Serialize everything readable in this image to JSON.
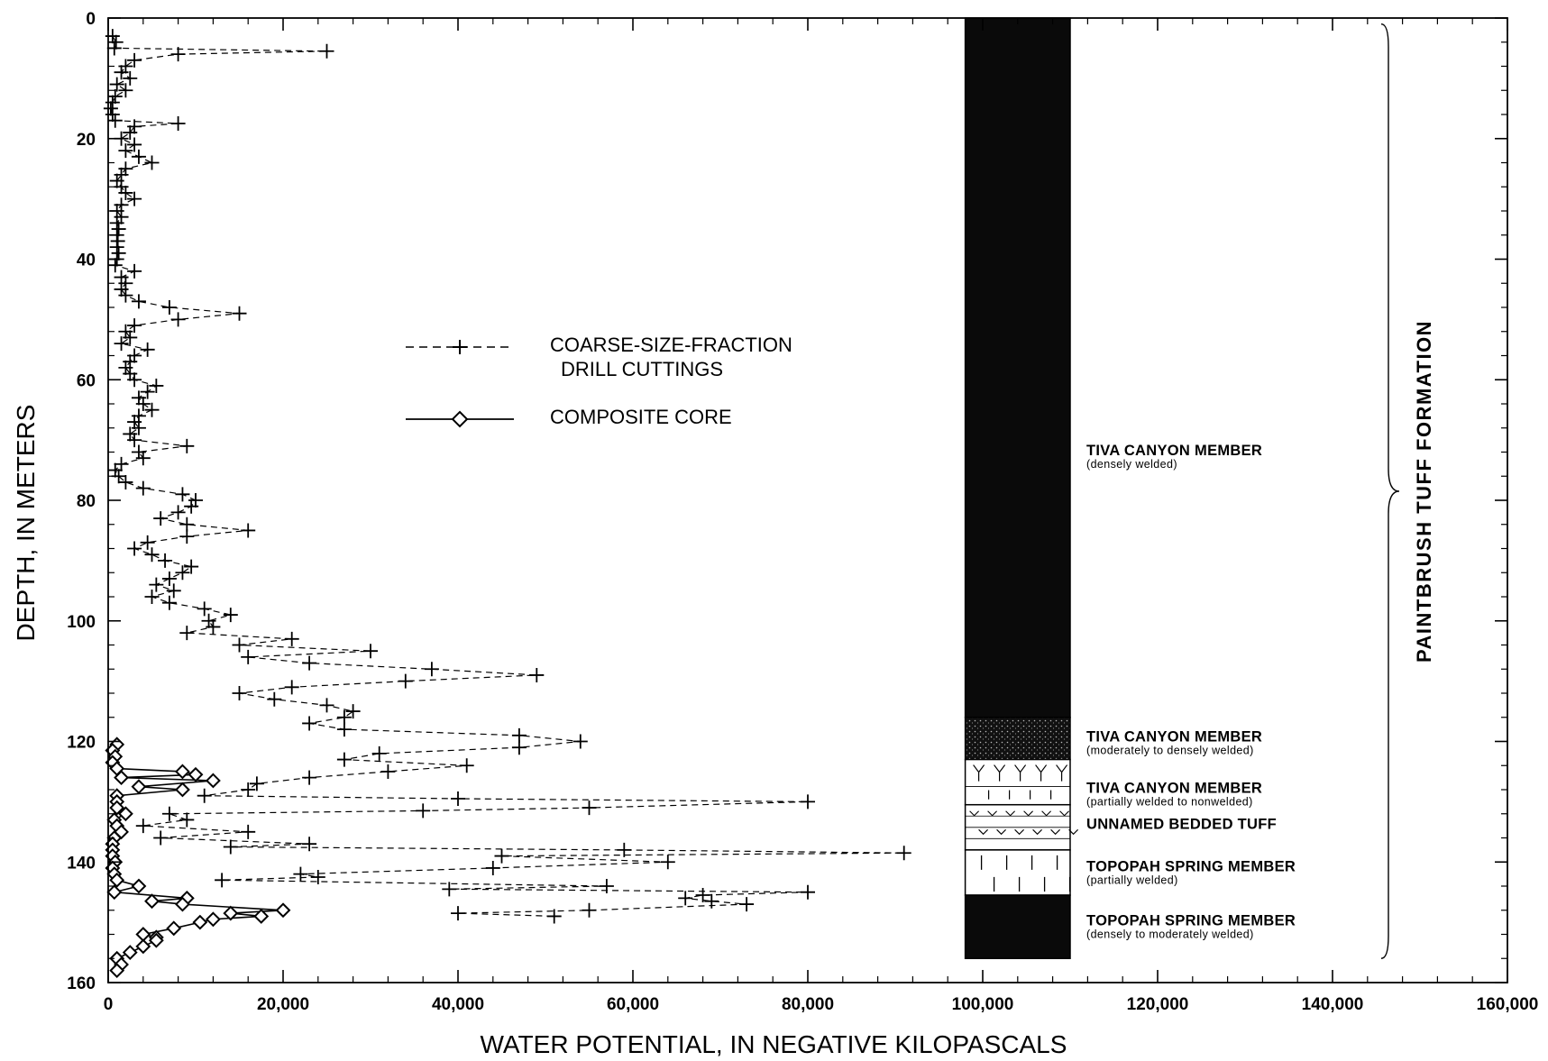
{
  "chart_data": {
    "type": "scatter",
    "xlabel": "WATER POTENTIAL, IN NEGATIVE KILOPASCALS",
    "ylabel": "DEPTH, IN METERS",
    "xlim": [
      0,
      160000
    ],
    "ylim": [
      0,
      160
    ],
    "y_inverted": true,
    "x_ticks": [
      0,
      20000,
      40000,
      60000,
      80000,
      100000,
      120000,
      140000,
      160000
    ],
    "x_tick_labels": [
      "0",
      "20,000",
      "40,000",
      "60,000",
      "80,000",
      "100,000",
      "120,000",
      "140,000",
      "160,000"
    ],
    "y_ticks": [
      0,
      20,
      40,
      60,
      80,
      100,
      120,
      140,
      160
    ],
    "y_tick_labels": [
      "0",
      "20",
      "40",
      "60",
      "80",
      "100",
      "120",
      "140",
      "160"
    ],
    "legend": {
      "placement": "upper-center",
      "entries": [
        {
          "label_lines": [
            "COARSE-SIZE-FRACTION",
            "DRILL CUTTINGS"
          ],
          "line": "dashed",
          "marker": "plus"
        },
        {
          "label_lines": [
            "COMPOSITE CORE"
          ],
          "line": "solid",
          "marker": "diamond"
        }
      ]
    },
    "series": [
      {
        "name": "COARSE-SIZE-FRACTION DRILL CUTTINGS",
        "marker": "plus",
        "line": "dashed",
        "points": [
          [
            500,
            3
          ],
          [
            900,
            4
          ],
          [
            700,
            5
          ],
          [
            25000,
            5.5
          ],
          [
            8000,
            6
          ],
          [
            3000,
            7
          ],
          [
            2000,
            8
          ],
          [
            1500,
            9
          ],
          [
            2500,
            10
          ],
          [
            1000,
            11
          ],
          [
            2000,
            12
          ],
          [
            800,
            13
          ],
          [
            500,
            14
          ],
          [
            300,
            15
          ],
          [
            500,
            16
          ],
          [
            800,
            17
          ],
          [
            8000,
            17.5
          ],
          [
            3000,
            18
          ],
          [
            2500,
            19
          ],
          [
            1500,
            20
          ],
          [
            3000,
            21
          ],
          [
            2000,
            22
          ],
          [
            3500,
            23
          ],
          [
            5000,
            24
          ],
          [
            2000,
            25
          ],
          [
            1500,
            26
          ],
          [
            1000,
            27
          ],
          [
            1500,
            28
          ],
          [
            2000,
            29
          ],
          [
            3000,
            30
          ],
          [
            1500,
            31
          ],
          [
            1000,
            32
          ],
          [
            1500,
            33
          ],
          [
            1000,
            34
          ],
          [
            1200,
            35
          ],
          [
            1000,
            36
          ],
          [
            1100,
            37
          ],
          [
            1000,
            38
          ],
          [
            1200,
            39
          ],
          [
            1000,
            40
          ],
          [
            800,
            41
          ],
          [
            3000,
            42
          ],
          [
            1500,
            43
          ],
          [
            2000,
            44
          ],
          [
            1500,
            45
          ],
          [
            2000,
            46
          ],
          [
            3500,
            47
          ],
          [
            7000,
            48
          ],
          [
            15000,
            49
          ],
          [
            8000,
            50
          ],
          [
            3000,
            51
          ],
          [
            2000,
            52
          ],
          [
            2500,
            53
          ],
          [
            1500,
            54
          ],
          [
            4500,
            55
          ],
          [
            3000,
            56
          ],
          [
            2500,
            57
          ],
          [
            2000,
            58
          ],
          [
            2500,
            59
          ],
          [
            3000,
            60
          ],
          [
            5500,
            61
          ],
          [
            4500,
            62
          ],
          [
            3500,
            63
          ],
          [
            4000,
            64
          ],
          [
            5000,
            65
          ],
          [
            3500,
            66
          ],
          [
            3000,
            67
          ],
          [
            3500,
            68
          ],
          [
            2500,
            69
          ],
          [
            3000,
            70
          ],
          [
            9000,
            71
          ],
          [
            3500,
            72
          ],
          [
            4000,
            73
          ],
          [
            1500,
            74
          ],
          [
            800,
            75
          ],
          [
            1200,
            76
          ],
          [
            2000,
            77
          ],
          [
            4000,
            78
          ],
          [
            8500,
            79
          ],
          [
            10000,
            80
          ],
          [
            9500,
            81
          ],
          [
            8000,
            82
          ],
          [
            6000,
            83
          ],
          [
            9000,
            84
          ],
          [
            16000,
            85
          ],
          [
            9000,
            86
          ],
          [
            4500,
            87
          ],
          [
            3000,
            88
          ],
          [
            5000,
            89
          ],
          [
            6500,
            90
          ],
          [
            9500,
            91
          ],
          [
            8500,
            92
          ],
          [
            7000,
            93
          ],
          [
            5500,
            94
          ],
          [
            7500,
            95
          ],
          [
            5000,
            96
          ],
          [
            7000,
            97
          ],
          [
            11000,
            98
          ],
          [
            14000,
            99
          ],
          [
            11500,
            100
          ],
          [
            12000,
            101
          ],
          [
            9000,
            102
          ],
          [
            21000,
            103
          ],
          [
            15000,
            104
          ],
          [
            30000,
            105
          ],
          [
            16000,
            106
          ],
          [
            23000,
            107
          ],
          [
            37000,
            108
          ],
          [
            49000,
            109
          ],
          [
            34000,
            110
          ],
          [
            21000,
            111
          ],
          [
            15000,
            112
          ],
          [
            19000,
            113
          ],
          [
            25000,
            114
          ],
          [
            28000,
            115
          ],
          [
            27000,
            116
          ],
          [
            23000,
            117
          ],
          [
            27000,
            118
          ],
          [
            47000,
            119
          ],
          [
            54000,
            120
          ],
          [
            47000,
            121
          ],
          [
            31000,
            122
          ],
          [
            27000,
            123
          ],
          [
            41000,
            124
          ],
          [
            32000,
            125
          ],
          [
            23000,
            126
          ],
          [
            17000,
            127
          ],
          [
            16000,
            128
          ],
          [
            11000,
            129
          ],
          [
            40000,
            129.5
          ],
          [
            80000,
            130
          ],
          [
            55000,
            131
          ],
          [
            36000,
            131.5
          ],
          [
            7000,
            132
          ],
          [
            9000,
            133
          ],
          [
            4000,
            134
          ],
          [
            16000,
            135
          ],
          [
            6000,
            136
          ],
          [
            23000,
            137
          ],
          [
            14000,
            137.5
          ],
          [
            59000,
            138
          ],
          [
            91000,
            138.5
          ],
          [
            45000,
            139
          ],
          [
            64000,
            140
          ],
          [
            44000,
            141
          ],
          [
            22000,
            142
          ],
          [
            24000,
            142.5
          ],
          [
            13000,
            143
          ],
          [
            57000,
            144
          ],
          [
            39000,
            144.5
          ],
          [
            80000,
            145
          ],
          [
            68000,
            145.5
          ],
          [
            66000,
            146
          ],
          [
            69000,
            146.5
          ],
          [
            73000,
            147
          ],
          [
            55000,
            148
          ],
          [
            40000,
            148.5
          ],
          [
            51000,
            149
          ]
        ]
      },
      {
        "name": "COMPOSITE CORE",
        "marker": "diamond",
        "line": "solid",
        "points": [
          [
            1000,
            120.5
          ],
          [
            500,
            121.5
          ],
          [
            800,
            122.5
          ],
          [
            500,
            123.5
          ],
          [
            1000,
            124.5
          ],
          [
            8500,
            125
          ],
          [
            10000,
            125.5
          ],
          [
            1500,
            126
          ],
          [
            12000,
            126.5
          ],
          [
            3500,
            127.5
          ],
          [
            8500,
            128
          ],
          [
            1000,
            129
          ],
          [
            1000,
            130
          ],
          [
            1000,
            131
          ],
          [
            2000,
            132
          ],
          [
            700,
            133
          ],
          [
            1000,
            134
          ],
          [
            1500,
            135
          ],
          [
            700,
            136
          ],
          [
            500,
            137
          ],
          [
            500,
            138
          ],
          [
            500,
            139
          ],
          [
            800,
            140
          ],
          [
            500,
            141
          ],
          [
            700,
            142
          ],
          [
            1000,
            143
          ],
          [
            3500,
            144
          ],
          [
            700,
            145
          ],
          [
            9000,
            146
          ],
          [
            5000,
            146.5
          ],
          [
            8500,
            147
          ],
          [
            20000,
            148
          ],
          [
            14000,
            148.5
          ],
          [
            17500,
            149
          ],
          [
            12000,
            149.5
          ],
          [
            10500,
            150
          ],
          [
            7500,
            151
          ],
          [
            4000,
            152
          ],
          [
            5500,
            152.5
          ],
          [
            5500,
            153
          ],
          [
            4000,
            154
          ],
          [
            2500,
            155
          ],
          [
            1000,
            156
          ],
          [
            1500,
            157
          ],
          [
            1000,
            158
          ]
        ]
      }
    ],
    "lithologic_column": {
      "x_range": [
        98000,
        110000
      ],
      "units": [
        {
          "top": 0,
          "bottom": 116,
          "pattern": "solid",
          "name": "TIVA CANYON MEMBER",
          "description": "(densely welded)",
          "label_depth": 72.5
        },
        {
          "top": 116,
          "bottom": 123,
          "pattern": "stipple",
          "name": "TIVA CANYON MEMBER",
          "description": "(moderately to densely welded)",
          "label_depth": 120
        },
        {
          "top": 123,
          "bottom": 130.5,
          "pattern": "y-shapes",
          "name": "TIVA CANYON MEMBER",
          "description": "(partially welded to nonwelded)",
          "label_depth": 128.5
        },
        {
          "top": 130.5,
          "bottom": 138,
          "pattern": "bedded",
          "name": "UNNAMED BEDDED TUFF",
          "description": "",
          "label_depth": 134.5
        },
        {
          "top": 138,
          "bottom": 145.5,
          "pattern": "verticals",
          "name": "TOPOPAH SPRING MEMBER",
          "description": "(partially welded)",
          "label_depth": 141.5
        },
        {
          "top": 145.5,
          "bottom": 156,
          "pattern": "solid",
          "name": "TOPOPAH SPRING MEMBER",
          "description": "(densely to moderately welded)",
          "label_depth": 150.5
        }
      ]
    },
    "formation_bracket": {
      "label": "PAINTBRUSH TUFF FORMATION",
      "top": 1,
      "bottom": 156
    }
  }
}
